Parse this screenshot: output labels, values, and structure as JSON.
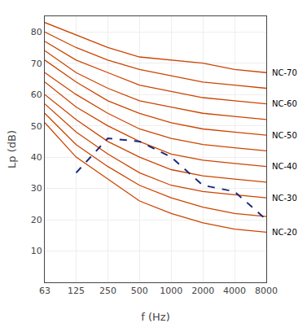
{
  "chart_data": {
    "type": "line",
    "xlabel": "f (Hz)",
    "ylabel": "Lp (dB)",
    "log": "x",
    "grid": true,
    "x": [
      63,
      125,
      250,
      500,
      1000,
      2000,
      4000,
      8000
    ],
    "xlim": [
      63,
      8000
    ],
    "xticks": [
      63,
      125,
      250,
      500,
      1000,
      2000,
      4000,
      8000
    ],
    "ylim": [
      0,
      85
    ],
    "yticks": [
      10,
      20,
      30,
      40,
      50,
      60,
      70,
      80
    ],
    "series": [
      {
        "color": "#cc4400",
        "values": [
          51,
          40,
          33,
          26,
          22,
          19,
          17,
          16
        ]
      },
      {
        "color": "#cc4400",
        "values": [
          54,
          44,
          37,
          31,
          27,
          24,
          22,
          21
        ]
      },
      {
        "color": "#cc4400",
        "values": [
          57,
          48,
          41,
          35,
          31,
          29,
          28,
          27
        ]
      },
      {
        "color": "#cc4400",
        "values": [
          60,
          52,
          45,
          40,
          36,
          34,
          33,
          32
        ]
      },
      {
        "color": "#cc4400",
        "values": [
          64,
          56,
          50,
          45,
          41,
          39,
          38,
          37
        ]
      },
      {
        "color": "#cc4400",
        "values": [
          67,
          60,
          54,
          49,
          46,
          44,
          43,
          42
        ]
      },
      {
        "color": "#cc4400",
        "values": [
          71,
          64,
          58,
          54,
          51,
          49,
          48,
          47
        ]
      },
      {
        "color": "#cc4400",
        "values": [
          74,
          67,
          62,
          58,
          56,
          54,
          53,
          52
        ]
      },
      {
        "color": "#cc4400",
        "values": [
          77,
          71,
          67,
          63,
          61,
          59,
          58,
          57
        ]
      },
      {
        "color": "#cc4400",
        "values": [
          80,
          75,
          71,
          68,
          66,
          64,
          63,
          62
        ]
      },
      {
        "color": "#cc4400",
        "values": [
          83,
          79,
          75,
          72,
          71,
          70,
          68,
          67
        ]
      },
      {
        "color": "#1a2a7c",
        "line_style": "dashed",
        "x": [
          125,
          250,
          500,
          1000,
          2000,
          4000,
          8000
        ],
        "values": [
          35,
          46,
          45,
          40,
          31,
          29,
          20
        ]
      }
    ],
    "annotations": [
      {
        "text": "NC-70",
        "x": 8000,
        "y": 67
      },
      {
        "text": "NC-60",
        "x": 8000,
        "y": 57
      },
      {
        "text": "NC-50",
        "x": 8000,
        "y": 47
      },
      {
        "text": "NC-40",
        "x": 8000,
        "y": 37
      },
      {
        "text": "NC-30",
        "x": 8000,
        "y": 27
      },
      {
        "text": "NC-20",
        "x": 8000,
        "y": 16
      }
    ]
  }
}
